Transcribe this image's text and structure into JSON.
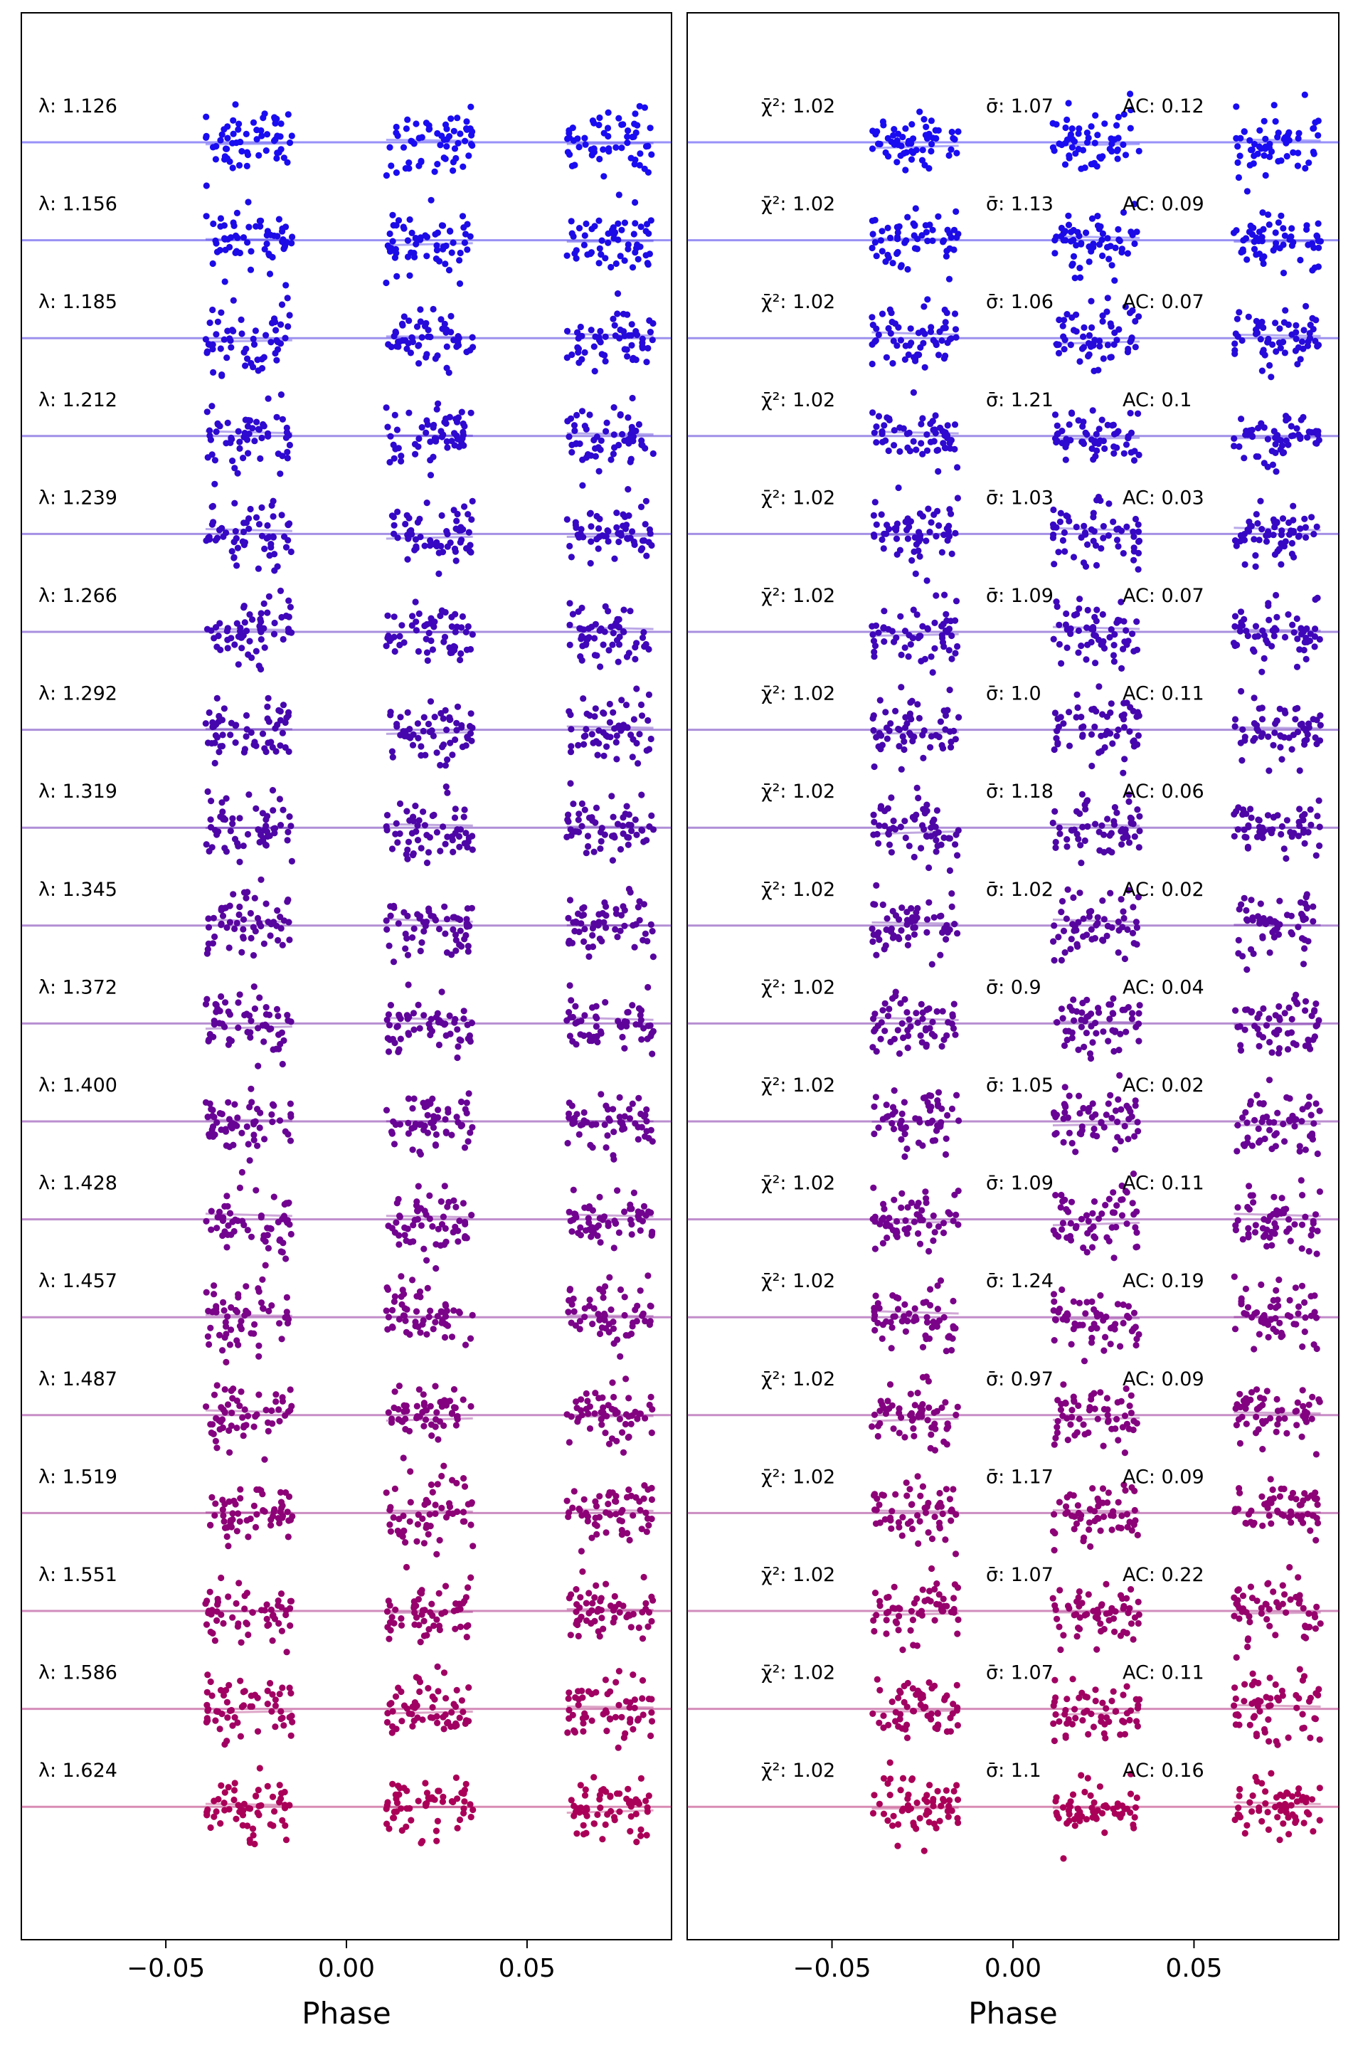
{
  "chart_data": [
    {
      "type": "scatter",
      "panel": "left",
      "xlabel": "Phase",
      "ylabel": "",
      "title": "",
      "xlim": [
        -0.09,
        0.09
      ],
      "xticks": [
        {
          "value": -0.05,
          "label": "−0.05"
        },
        {
          "value": 0.0,
          "label": "0.00"
        },
        {
          "value": 0.05,
          "label": "0.05"
        }
      ],
      "phase_windows": [
        [
          -0.039,
          -0.015
        ],
        [
          0.011,
          0.035
        ],
        [
          0.061,
          0.085
        ]
      ],
      "grid": false,
      "series": [
        {
          "label": "λ: 1.126",
          "color": "#1a0cf0"
        },
        {
          "label": "λ: 1.156",
          "color": "#1d0be6"
        },
        {
          "label": "λ: 1.185",
          "color": "#260ada"
        },
        {
          "label": "λ: 1.212",
          "color": "#2e09cf"
        },
        {
          "label": "λ: 1.239",
          "color": "#3608c4"
        },
        {
          "label": "λ: 1.266",
          "color": "#3f07b9"
        },
        {
          "label": "λ: 1.292",
          "color": "#4606ad"
        },
        {
          "label": "λ: 1.319",
          "color": "#4e06a6"
        },
        {
          "label": "λ: 1.345",
          "color": "#57059f"
        },
        {
          "label": "λ: 1.372",
          "color": "#5f049a"
        },
        {
          "label": "λ: 1.400",
          "color": "#680495"
        },
        {
          "label": "λ: 1.428",
          "color": "#720390"
        },
        {
          "label": "λ: 1.457",
          "color": "#7a0389"
        },
        {
          "label": "λ: 1.487",
          "color": "#830280"
        },
        {
          "label": "λ: 1.519",
          "color": "#8d0276"
        },
        {
          "label": "λ: 1.551",
          "color": "#96016c"
        },
        {
          "label": "λ: 1.586",
          "color": "#a00162"
        },
        {
          "label": "λ: 1.624",
          "color": "#aa0058"
        }
      ]
    },
    {
      "type": "scatter",
      "panel": "right",
      "xlabel": "Phase",
      "ylabel": "",
      "title": "",
      "xlim": [
        -0.09,
        0.09
      ],
      "xticks": [
        {
          "value": -0.05,
          "label": "−0.05"
        },
        {
          "value": 0.0,
          "label": "0.00"
        },
        {
          "value": 0.05,
          "label": "0.05"
        }
      ],
      "phase_windows": [
        [
          -0.039,
          -0.015
        ],
        [
          0.011,
          0.035
        ],
        [
          0.061,
          0.085
        ]
      ],
      "grid": false,
      "series": [
        {
          "chi2": "1.02",
          "sigma": "1.07",
          "ac": "0.12"
        },
        {
          "chi2": "1.02",
          "sigma": "1.13",
          "ac": "0.09"
        },
        {
          "chi2": "1.02",
          "sigma": "1.06",
          "ac": "0.07"
        },
        {
          "chi2": "1.02",
          "sigma": "1.21",
          "ac": "0.1"
        },
        {
          "chi2": "1.02",
          "sigma": "1.03",
          "ac": "0.03"
        },
        {
          "chi2": "1.02",
          "sigma": "1.09",
          "ac": "0.07"
        },
        {
          "chi2": "1.02",
          "sigma": "1.0",
          "ac": "0.11"
        },
        {
          "chi2": "1.02",
          "sigma": "1.18",
          "ac": "0.06"
        },
        {
          "chi2": "1.02",
          "sigma": "1.02",
          "ac": "0.02"
        },
        {
          "chi2": "1.02",
          "sigma": "0.9",
          "ac": "0.04"
        },
        {
          "chi2": "1.02",
          "sigma": "1.05",
          "ac": "0.02"
        },
        {
          "chi2": "1.02",
          "sigma": "1.09",
          "ac": "0.11"
        },
        {
          "chi2": "1.02",
          "sigma": "1.24",
          "ac": "0.19"
        },
        {
          "chi2": "1.02",
          "sigma": "0.97",
          "ac": "0.09"
        },
        {
          "chi2": "1.02",
          "sigma": "1.17",
          "ac": "0.09"
        },
        {
          "chi2": "1.02",
          "sigma": "1.07",
          "ac": "0.22"
        },
        {
          "chi2": "1.02",
          "sigma": "1.07",
          "ac": "0.11"
        },
        {
          "chi2": "1.02",
          "sigma": "1.1",
          "ac": "0.16"
        }
      ]
    }
  ]
}
